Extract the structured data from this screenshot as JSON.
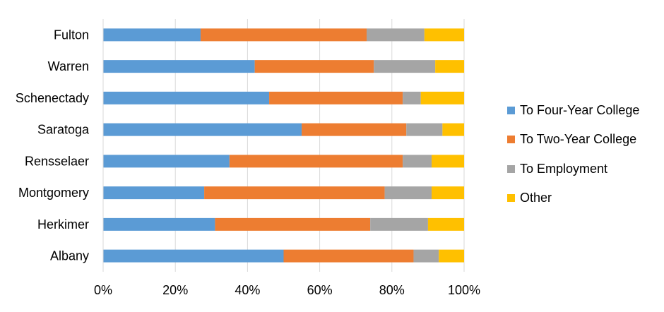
{
  "chart_data": {
    "type": "bar",
    "orientation": "horizontal",
    "stacked": "percent",
    "categories": [
      "Fulton",
      "Warren",
      "Schenectady",
      "Saratoga",
      "Rensselaer",
      "Montgomery",
      "Herkimer",
      "Albany"
    ],
    "series": [
      {
        "name": "To Four-Year College",
        "color": "#5B9BD5",
        "values": [
          27,
          42,
          46,
          55,
          35,
          28,
          31,
          50
        ]
      },
      {
        "name": "To Two-Year College",
        "color": "#ED7D31",
        "values": [
          46,
          33,
          37,
          29,
          48,
          50,
          43,
          36
        ]
      },
      {
        "name": "To Employment",
        "color": "#A5A5A5",
        "values": [
          16,
          17,
          5,
          10,
          8,
          13,
          16,
          7
        ]
      },
      {
        "name": "Other",
        "color": "#FFC000",
        "values": [
          11,
          8,
          12,
          6,
          9,
          9,
          10,
          7
        ]
      }
    ],
    "xlim": [
      0,
      100
    ],
    "x_ticks": [
      "0%",
      "20%",
      "40%",
      "60%",
      "80%",
      "100%"
    ],
    "grid": true,
    "legend_position": "right",
    "title": "",
    "xlabel": "",
    "ylabel": ""
  }
}
